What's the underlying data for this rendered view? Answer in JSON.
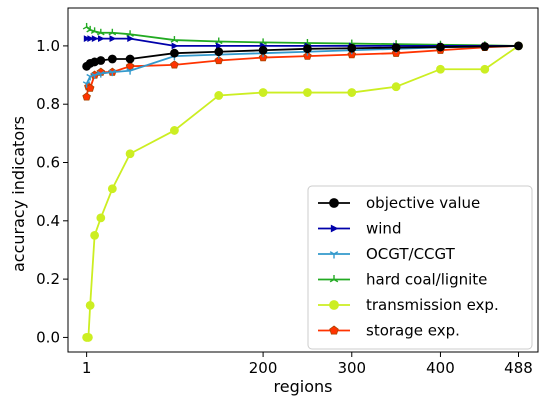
{
  "chart_data": {
    "type": "line",
    "xlabel": "regions",
    "ylabel": "accuracy indicators",
    "xlim": [
      -20,
      510
    ],
    "ylim": [
      -0.05,
      1.13
    ],
    "xticks": [
      1,
      200,
      300,
      400,
      488
    ],
    "yticks": [
      0.0,
      0.2,
      0.4,
      0.6,
      0.8,
      1.0
    ],
    "grid": false,
    "legend_position": "lower-right",
    "series": [
      {
        "name": "objective value",
        "color": "#000000",
        "marker": "circle",
        "x": [
          1,
          5,
          10,
          17,
          30,
          50,
          100,
          150,
          200,
          250,
          300,
          350,
          400,
          450,
          488
        ],
        "y": [
          0.93,
          0.94,
          0.945,
          0.95,
          0.955,
          0.955,
          0.975,
          0.98,
          0.985,
          0.99,
          0.992,
          0.994,
          0.996,
          0.998,
          1.0
        ]
      },
      {
        "name": "wind",
        "color": "#0000aa",
        "marker": "triangle-right",
        "x": [
          1,
          5,
          10,
          17,
          30,
          50,
          100,
          150,
          200,
          250,
          300,
          350,
          400,
          450,
          488
        ],
        "y": [
          1.025,
          1.025,
          1.025,
          1.025,
          1.025,
          1.025,
          1.0,
          1.0,
          1.0,
          1.0,
          1.0,
          1.0,
          1.0,
          1.0,
          1.0
        ]
      },
      {
        "name": "OCGT/CCGT",
        "color": "#3399cc",
        "marker": "tri-down",
        "x": [
          1,
          5,
          10,
          17,
          30,
          50,
          100,
          150,
          200,
          250,
          300,
          350,
          400,
          450,
          488
        ],
        "y": [
          0.87,
          0.895,
          0.9,
          0.905,
          0.91,
          0.915,
          0.965,
          0.97,
          0.975,
          0.98,
          0.985,
          0.99,
          0.995,
          0.998,
          1.0
        ]
      },
      {
        "name": "hard coal/lignite",
        "color": "#22aa22",
        "marker": "tri-up",
        "x": [
          1,
          5,
          10,
          17,
          30,
          50,
          100,
          150,
          200,
          250,
          300,
          350,
          400,
          450,
          488
        ],
        "y": [
          1.065,
          1.055,
          1.05,
          1.045,
          1.045,
          1.04,
          1.02,
          1.015,
          1.012,
          1.01,
          1.008,
          1.006,
          1.004,
          1.002,
          1.0
        ]
      },
      {
        "name": "transmission exp.",
        "color": "#ccee22",
        "marker": "circle",
        "x": [
          1,
          3,
          5,
          10,
          17,
          30,
          50,
          100,
          150,
          200,
          250,
          300,
          350,
          400,
          450,
          488
        ],
        "y": [
          0.0,
          0.0,
          0.11,
          0.35,
          0.41,
          0.51,
          0.63,
          0.71,
          0.83,
          0.84,
          0.84,
          0.84,
          0.86,
          0.92,
          0.92,
          1.0
        ]
      },
      {
        "name": "storage exp.",
        "color": "#ff3300",
        "edgecolor": "#aa4400",
        "marker": "pentagon",
        "x": [
          1,
          3,
          5,
          10,
          17,
          30,
          50,
          100,
          150,
          200,
          250,
          300,
          350,
          400,
          450,
          488
        ],
        "y": [
          0.825,
          0.86,
          0.855,
          0.9,
          0.91,
          0.91,
          0.93,
          0.935,
          0.95,
          0.96,
          0.965,
          0.97,
          0.975,
          0.985,
          0.995,
          1.0
        ]
      }
    ]
  }
}
